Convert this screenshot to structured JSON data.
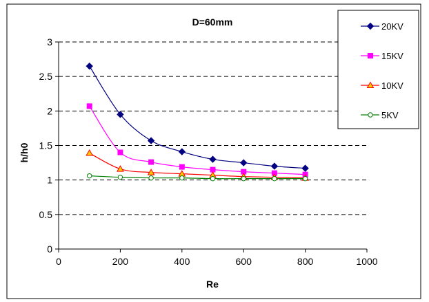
{
  "chart_data": {
    "type": "line",
    "title": "D=60mm",
    "xlabel": "Re",
    "ylabel": "h/h0",
    "xlim": [
      0,
      1000
    ],
    "ylim": [
      0,
      3
    ],
    "xticks": [
      0,
      200,
      400,
      600,
      800,
      1000
    ],
    "yticks": [
      0,
      0.5,
      1,
      1.5,
      2,
      2.5,
      3
    ],
    "ytick_labels": [
      "0",
      "0.5",
      "1",
      "1.5",
      "2",
      "2.5",
      "3"
    ],
    "grid": "horizontal-dashed",
    "legend_position": "top-right",
    "x": [
      100,
      200,
      300,
      400,
      500,
      600,
      700,
      800
    ],
    "series": [
      {
        "name": "20KV",
        "color": "#000080",
        "marker": "diamond",
        "values": [
          2.65,
          1.95,
          1.57,
          1.41,
          1.3,
          1.25,
          1.2,
          1.17
        ]
      },
      {
        "name": "15KV",
        "color": "#ff00ff",
        "marker": "square",
        "values": [
          2.07,
          1.4,
          1.26,
          1.19,
          1.15,
          1.12,
          1.1,
          1.08
        ]
      },
      {
        "name": "10KV",
        "color": "#ff0000",
        "marker": "triangle",
        "values": [
          1.39,
          1.16,
          1.11,
          1.09,
          1.07,
          1.05,
          1.04,
          1.03
        ]
      },
      {
        "name": "5KV",
        "color": "#008000",
        "marker": "circle",
        "values": [
          1.06,
          1.04,
          1.03,
          1.03,
          1.02,
          1.02,
          1.02,
          1.02
        ]
      }
    ]
  }
}
